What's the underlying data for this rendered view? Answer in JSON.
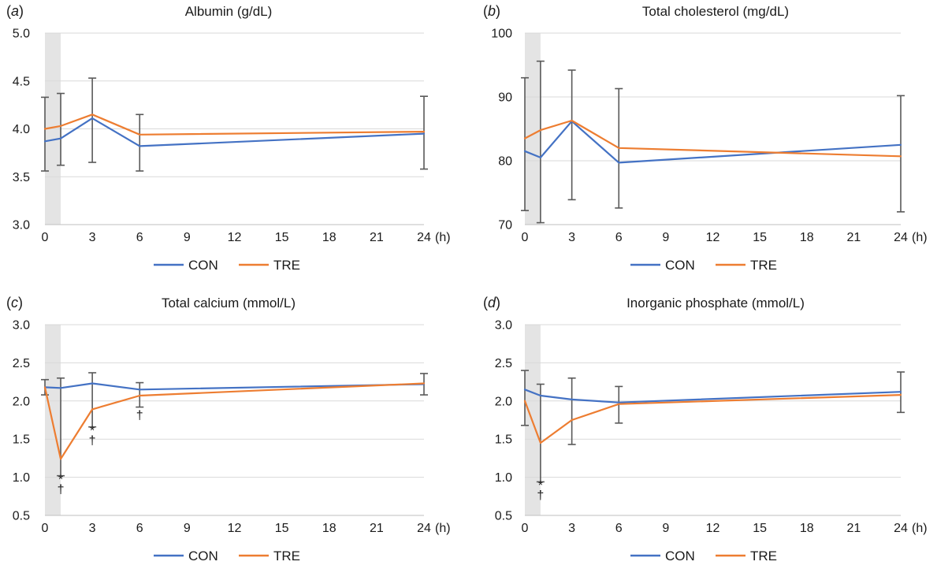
{
  "chart_data": [
    {
      "type": "line",
      "letter": "a",
      "title": "Albumin (g/dL)",
      "x": [
        0,
        1,
        3,
        6,
        24
      ],
      "xticks": [
        0,
        3,
        6,
        9,
        12,
        15,
        18,
        21,
        24
      ],
      "xunit": "(h)",
      "ylim": [
        3.0,
        5.0
      ],
      "yticks": [
        "3.0",
        "3.5",
        "4.0",
        "4.5",
        "5.0"
      ],
      "shade": [
        0,
        1
      ],
      "series": [
        {
          "name": "CON",
          "color": "#4472C4",
          "values": [
            3.87,
            3.9,
            4.11,
            3.82,
            3.95
          ],
          "err_up": [
            4.33,
            4.37,
            4.53,
            4.15,
            4.34
          ],
          "err_down": [
            3.56,
            3.62,
            3.65,
            3.56,
            3.58
          ]
        },
        {
          "name": "TRE",
          "color": "#ED7D31",
          "values": [
            4.0,
            4.03,
            4.15,
            3.94,
            3.97
          ]
        }
      ],
      "marks": []
    },
    {
      "type": "line",
      "letter": "b",
      "title": "Total cholesterol (mg/dL)",
      "x": [
        0,
        1,
        3,
        6,
        24
      ],
      "xticks": [
        0,
        3,
        6,
        9,
        12,
        15,
        18,
        21,
        24
      ],
      "xunit": "(h)",
      "ylim": [
        70,
        100
      ],
      "yticks": [
        "70",
        "80",
        "90",
        "100"
      ],
      "shade": [
        0,
        1
      ],
      "series": [
        {
          "name": "CON",
          "color": "#4472C4",
          "values": [
            81.5,
            80.5,
            86.2,
            79.7,
            82.5
          ],
          "err_up": [
            93.0,
            95.6,
            94.2,
            91.3,
            90.2
          ],
          "err_down": [
            72.2,
            70.3,
            73.9,
            72.6,
            72.0
          ]
        },
        {
          "name": "TRE",
          "color": "#ED7D31",
          "values": [
            83.5,
            84.8,
            86.3,
            82.0,
            80.7
          ]
        }
      ],
      "marks": []
    },
    {
      "type": "line",
      "letter": "c",
      "title": "Total calcium (mmol/L)",
      "x": [
        0,
        1,
        3,
        6,
        24
      ],
      "xticks": [
        0,
        3,
        6,
        9,
        12,
        15,
        18,
        21,
        24
      ],
      "xunit": "(h)",
      "ylim": [
        0.5,
        3.0
      ],
      "yticks": [
        "0.5",
        "1.0",
        "1.5",
        "2.0",
        "2.5",
        "3.0"
      ],
      "shade": [
        0,
        1
      ],
      "series": [
        {
          "name": "CON",
          "color": "#4472C4",
          "values": [
            2.18,
            2.17,
            2.23,
            2.15,
            2.22
          ],
          "err_up": [
            2.28,
            2.3,
            2.37,
            2.24,
            2.36
          ],
          "err_down": [
            2.08,
            1.02,
            1.66,
            1.92,
            2.08
          ]
        },
        {
          "name": "TRE",
          "color": "#ED7D31",
          "values": [
            2.18,
            1.24,
            1.89,
            2.07,
            2.23
          ]
        }
      ],
      "marks": [
        {
          "x": 1,
          "text": "*",
          "y": 0.92
        },
        {
          "x": 1,
          "text": "†",
          "y": 0.79
        },
        {
          "x": 3,
          "text": "*",
          "y": 1.56
        },
        {
          "x": 3,
          "text": "†",
          "y": 1.43
        },
        {
          "x": 6,
          "text": "†",
          "y": 1.76
        }
      ]
    },
    {
      "type": "line",
      "letter": "d",
      "title": "Inorganic phosphate (mmol/L)",
      "x": [
        0,
        1,
        3,
        6,
        24
      ],
      "xticks": [
        0,
        3,
        6,
        9,
        12,
        15,
        18,
        21,
        24
      ],
      "xunit": "(h)",
      "ylim": [
        0.5,
        3.0
      ],
      "yticks": [
        "0.5",
        "1.0",
        "1.5",
        "2.0",
        "2.5",
        "3.0"
      ],
      "shade": [
        0,
        1
      ],
      "series": [
        {
          "name": "CON",
          "color": "#4472C4",
          "values": [
            2.15,
            2.07,
            2.02,
            1.98,
            2.12
          ],
          "err_up": [
            2.4,
            2.22,
            2.3,
            2.19,
            2.38
          ],
          "err_down": [
            1.68,
            0.94,
            1.43,
            1.71,
            1.85
          ]
        },
        {
          "name": "TRE",
          "color": "#ED7D31",
          "values": [
            2.0,
            1.45,
            1.75,
            1.96,
            2.08
          ]
        }
      ],
      "marks": [
        {
          "x": 1,
          "text": "*",
          "y": 0.84
        },
        {
          "x": 1,
          "text": "†",
          "y": 0.71
        }
      ]
    }
  ]
}
